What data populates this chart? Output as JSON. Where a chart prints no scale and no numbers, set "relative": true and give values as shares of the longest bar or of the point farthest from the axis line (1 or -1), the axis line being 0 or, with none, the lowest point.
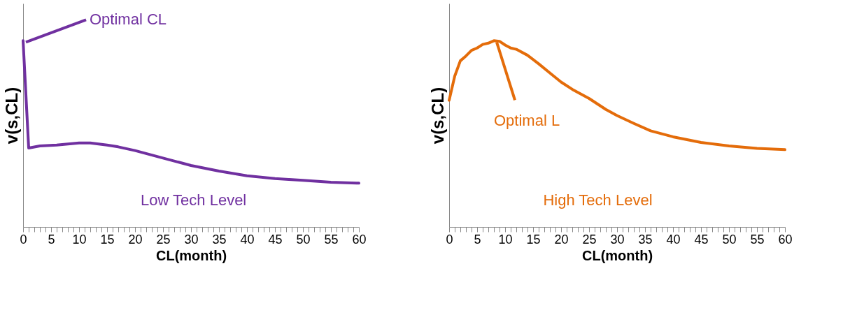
{
  "chart_data": [
    {
      "type": "line",
      "relative": true,
      "xlabel": "CL(month)",
      "ylabel": "v(s,CL)",
      "xlim": [
        0,
        60
      ],
      "xticks": [
        0,
        {
          "value": 1,
          "label": null
        },
        {
          "value": 2,
          "label": null
        },
        {
          "value": 3,
          "label": null
        },
        {
          "value": 4,
          "label": null
        },
        5,
        {
          "value": 6,
          "label": null
        },
        {
          "value": 7,
          "label": null
        },
        {
          "value": 8,
          "label": null
        },
        {
          "value": 9,
          "label": null
        },
        10,
        {
          "value": 11,
          "label": null
        },
        {
          "value": 12,
          "label": null
        },
        {
          "value": 13,
          "label": null
        },
        {
          "value": 14,
          "label": null
        },
        15,
        {
          "value": 16,
          "label": null
        },
        {
          "value": 17,
          "label": null
        },
        {
          "value": 18,
          "label": null
        },
        {
          "value": 19,
          "label": null
        },
        20,
        {
          "value": 21,
          "label": null
        },
        {
          "value": 22,
          "label": null
        },
        {
          "value": 23,
          "label": null
        },
        {
          "value": 24,
          "label": null
        },
        25,
        {
          "value": 26,
          "label": null
        },
        {
          "value": 27,
          "label": null
        },
        {
          "value": 28,
          "label": null
        },
        {
          "value": 29,
          "label": null
        },
        30,
        {
          "value": 31,
          "label": null
        },
        {
          "value": 32,
          "label": null
        },
        {
          "value": 33,
          "label": null
        },
        {
          "value": 34,
          "label": null
        },
        35,
        {
          "value": 36,
          "label": null
        },
        {
          "value": 37,
          "label": null
        },
        {
          "value": 38,
          "label": null
        },
        {
          "value": 39,
          "label": null
        },
        40,
        {
          "value": 41,
          "label": null
        },
        {
          "value": 42,
          "label": null
        },
        {
          "value": 43,
          "label": null
        },
        {
          "value": 44,
          "label": null
        },
        45,
        {
          "value": 46,
          "label": null
        },
        {
          "value": 47,
          "label": null
        },
        {
          "value": 48,
          "label": null
        },
        {
          "value": 49,
          "label": null
        },
        50,
        {
          "value": 51,
          "label": null
        },
        {
          "value": 52,
          "label": null
        },
        {
          "value": 53,
          "label": null
        },
        {
          "value": 54,
          "label": null
        },
        55,
        {
          "value": 56,
          "label": null
        },
        {
          "value": 57,
          "label": null
        },
        {
          "value": 58,
          "label": null
        },
        {
          "value": 59,
          "label": null
        },
        60
      ],
      "x": [
        0,
        1,
        3,
        6,
        10,
        12,
        15,
        17,
        20,
        25,
        30,
        35,
        40,
        45,
        50,
        55,
        60
      ],
      "series": [
        {
          "color": "#7030a0",
          "values": [
            1,
            0.424,
            0.435,
            0.44,
            0.451,
            0.451,
            0.44,
            0.43,
            0.41,
            0.37,
            0.33,
            0.3,
            0.275,
            0.26,
            0.25,
            0.24,
            0.235
          ]
        }
      ],
      "annotations": [
        {
          "text": "Optimal CL",
          "x": 0,
          "y": 1
        },
        "Low Tech Level"
      ]
    },
    {
      "type": "line",
      "relative": true,
      "xlabel": "CL(month)",
      "ylabel": "v(s,CL)",
      "xlim": [
        0,
        60
      ],
      "xticks": [
        0,
        {
          "value": 1,
          "label": null
        },
        {
          "value": 2,
          "label": null
        },
        {
          "value": 3,
          "label": null
        },
        {
          "value": 4,
          "label": null
        },
        5,
        {
          "value": 6,
          "label": null
        },
        {
          "value": 7,
          "label": null
        },
        {
          "value": 8,
          "label": null
        },
        {
          "value": 9,
          "label": null
        },
        10,
        {
          "value": 11,
          "label": null
        },
        {
          "value": 12,
          "label": null
        },
        {
          "value": 13,
          "label": null
        },
        {
          "value": 14,
          "label": null
        },
        15,
        {
          "value": 16,
          "label": null
        },
        {
          "value": 17,
          "label": null
        },
        {
          "value": 18,
          "label": null
        },
        {
          "value": 19,
          "label": null
        },
        20,
        {
          "value": 21,
          "label": null
        },
        {
          "value": 22,
          "label": null
        },
        {
          "value": 23,
          "label": null
        },
        {
          "value": 24,
          "label": null
        },
        25,
        {
          "value": 26,
          "label": null
        },
        {
          "value": 27,
          "label": null
        },
        {
          "value": 28,
          "label": null
        },
        {
          "value": 29,
          "label": null
        },
        30,
        {
          "value": 31,
          "label": null
        },
        {
          "value": 32,
          "label": null
        },
        {
          "value": 33,
          "label": null
        },
        {
          "value": 34,
          "label": null
        },
        35,
        {
          "value": 36,
          "label": null
        },
        {
          "value": 37,
          "label": null
        },
        {
          "value": 38,
          "label": null
        },
        {
          "value": 39,
          "label": null
        },
        40,
        {
          "value": 41,
          "label": null
        },
        {
          "value": 42,
          "label": null
        },
        {
          "value": 43,
          "label": null
        },
        {
          "value": 44,
          "label": null
        },
        45,
        {
          "value": 46,
          "label": null
        },
        {
          "value": 47,
          "label": null
        },
        {
          "value": 48,
          "label": null
        },
        {
          "value": 49,
          "label": null
        },
        50,
        {
          "value": 51,
          "label": null
        },
        {
          "value": 52,
          "label": null
        },
        {
          "value": 53,
          "label": null
        },
        {
          "value": 54,
          "label": null
        },
        55,
        {
          "value": 56,
          "label": null
        },
        {
          "value": 57,
          "label": null
        },
        {
          "value": 58,
          "label": null
        },
        {
          "value": 59,
          "label": null
        },
        60
      ],
      "x": [
        0,
        1,
        2,
        3,
        4,
        5,
        6,
        7,
        8,
        9,
        10,
        11,
        12,
        14,
        16,
        18,
        20,
        22,
        25,
        28,
        30,
        33,
        36,
        40,
        45,
        50,
        55,
        60
      ],
      "series": [
        {
          "color": "#e46c0a",
          "values": [
            0.68,
            0.81,
            0.892,
            0.918,
            0.948,
            0.961,
            0.98,
            0.987,
            1,
            0.997,
            0.977,
            0.961,
            0.954,
            0.922,
            0.876,
            0.827,
            0.778,
            0.739,
            0.69,
            0.631,
            0.598,
            0.556,
            0.516,
            0.484,
            0.454,
            0.435,
            0.422,
            0.415
          ]
        }
      ],
      "annotations": [
        {
          "text": "Optimal L",
          "x": 8,
          "y": 1
        },
        "High Tech Level"
      ]
    }
  ]
}
